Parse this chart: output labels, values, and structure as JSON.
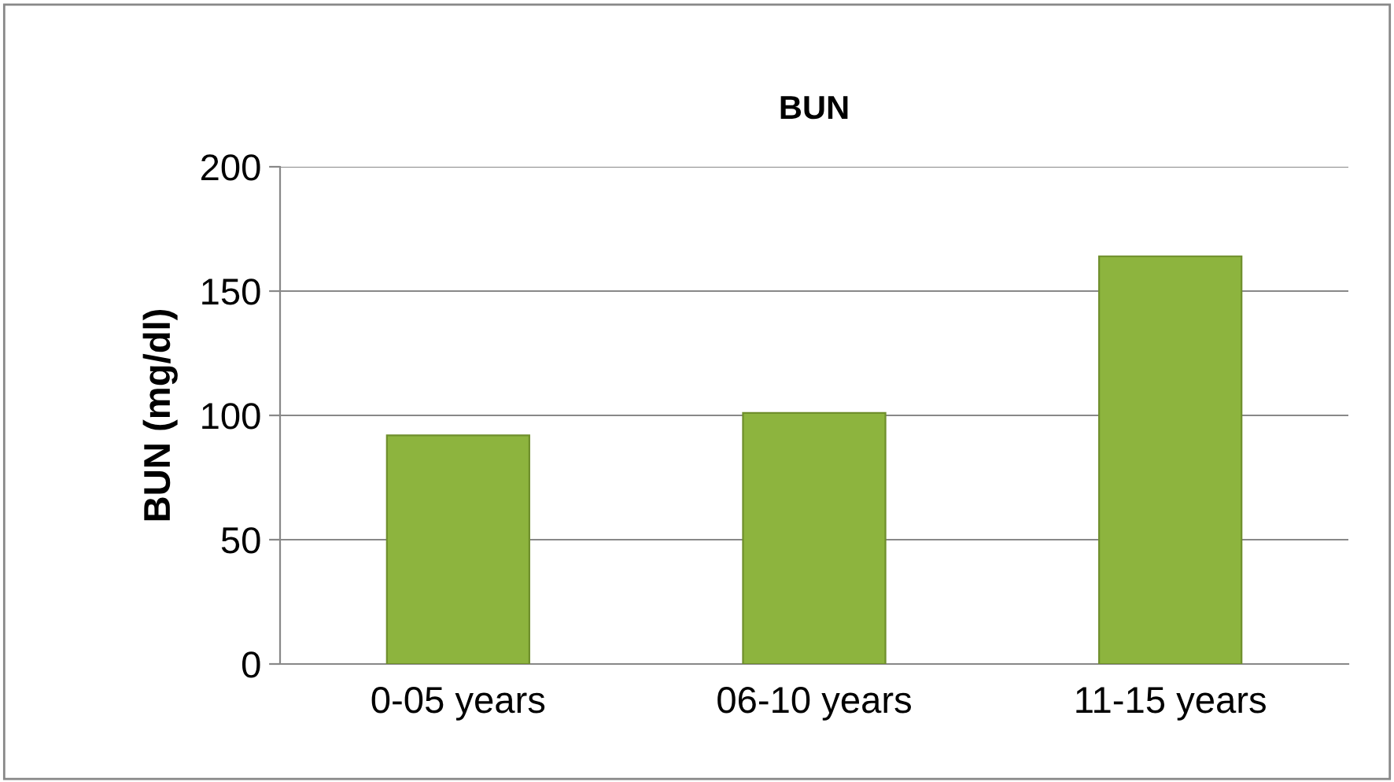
{
  "chart_data": {
    "type": "bar",
    "title": "BUN",
    "ylabel": "BUN (mg/dl)",
    "categories": [
      "0-05 years",
      "06-10 years",
      "11-15 years"
    ],
    "values": [
      92,
      101,
      164
    ],
    "color": "#8db43e",
    "ylim": [
      0,
      200
    ],
    "yticks": [
      0,
      50,
      100,
      150,
      200
    ],
    "grid": "y"
  }
}
